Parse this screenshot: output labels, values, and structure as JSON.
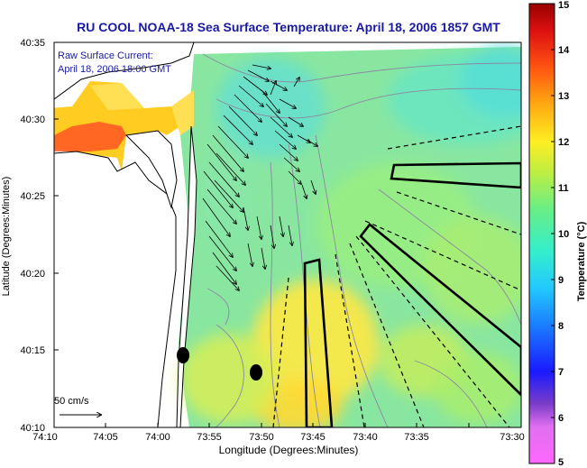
{
  "title": "RU COOL  NOAA-18  Sea Surface Temperature:  April 18, 2006 1857 GMT",
  "annotation": {
    "line1": "Raw Surface Current:",
    "line2": "April 18, 2006 18:00 GMT"
  },
  "scale_label": "50 cm/s",
  "axes": {
    "xlabel": "Longitude (Degrees:Minutes)",
    "ylabel": "Latitude (Degrees:Minutes)",
    "x_ticks": [
      "74:10",
      "74:05",
      "74:00",
      "73:55",
      "73:50",
      "73:45",
      "73:40",
      "73:35",
      "73:30"
    ],
    "y_ticks": [
      "40:35",
      "40:30",
      "40:25",
      "40:20",
      "40:15",
      "40:10"
    ]
  },
  "colorbar": {
    "label": "Temperature (°C)",
    "min": 5,
    "max": 15,
    "ticks": [
      "15",
      "14",
      "13",
      "12",
      "11",
      "10",
      "9",
      "8",
      "7",
      "6",
      "5"
    ]
  },
  "colors": {
    "title_text": "#1a1aa0",
    "land": "#ffffff",
    "vector": "#000000"
  }
}
